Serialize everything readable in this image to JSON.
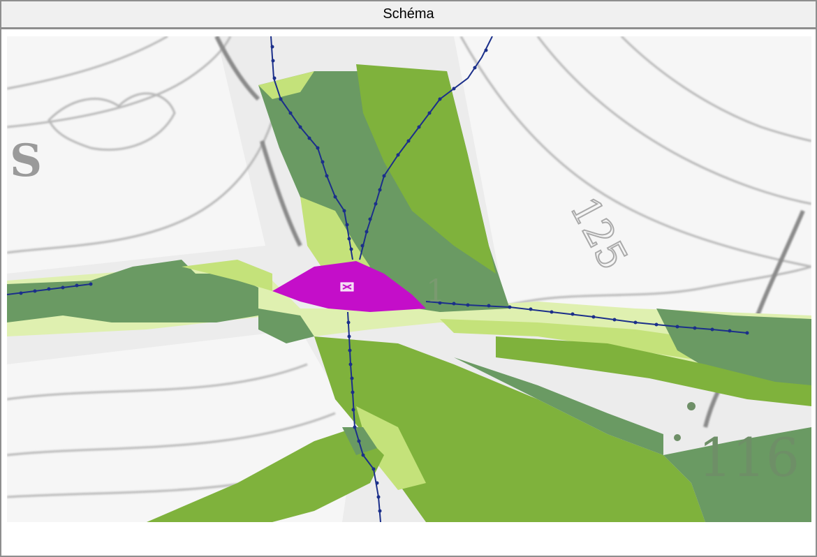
{
  "header": {
    "title": "Schéma"
  },
  "map": {
    "labels": [
      {
        "id": "letter-s",
        "text": "S"
      },
      {
        "id": "contour-125",
        "text": "125"
      },
      {
        "id": "elevation-116",
        "text": "116"
      },
      {
        "id": "spot-elevation-1",
        "text": "1"
      }
    ],
    "colors": {
      "background": "#ececec",
      "contour": "#b8b8b8",
      "dark_green": "#6a9a63",
      "mid_green": "#7fb23c",
      "light_green": "#c4e27a",
      "pale_green": "#dff0b0",
      "magenta": "#c40ec9",
      "blue_line": "#1b2f8a"
    },
    "icons": [
      "marker-icon"
    ]
  }
}
